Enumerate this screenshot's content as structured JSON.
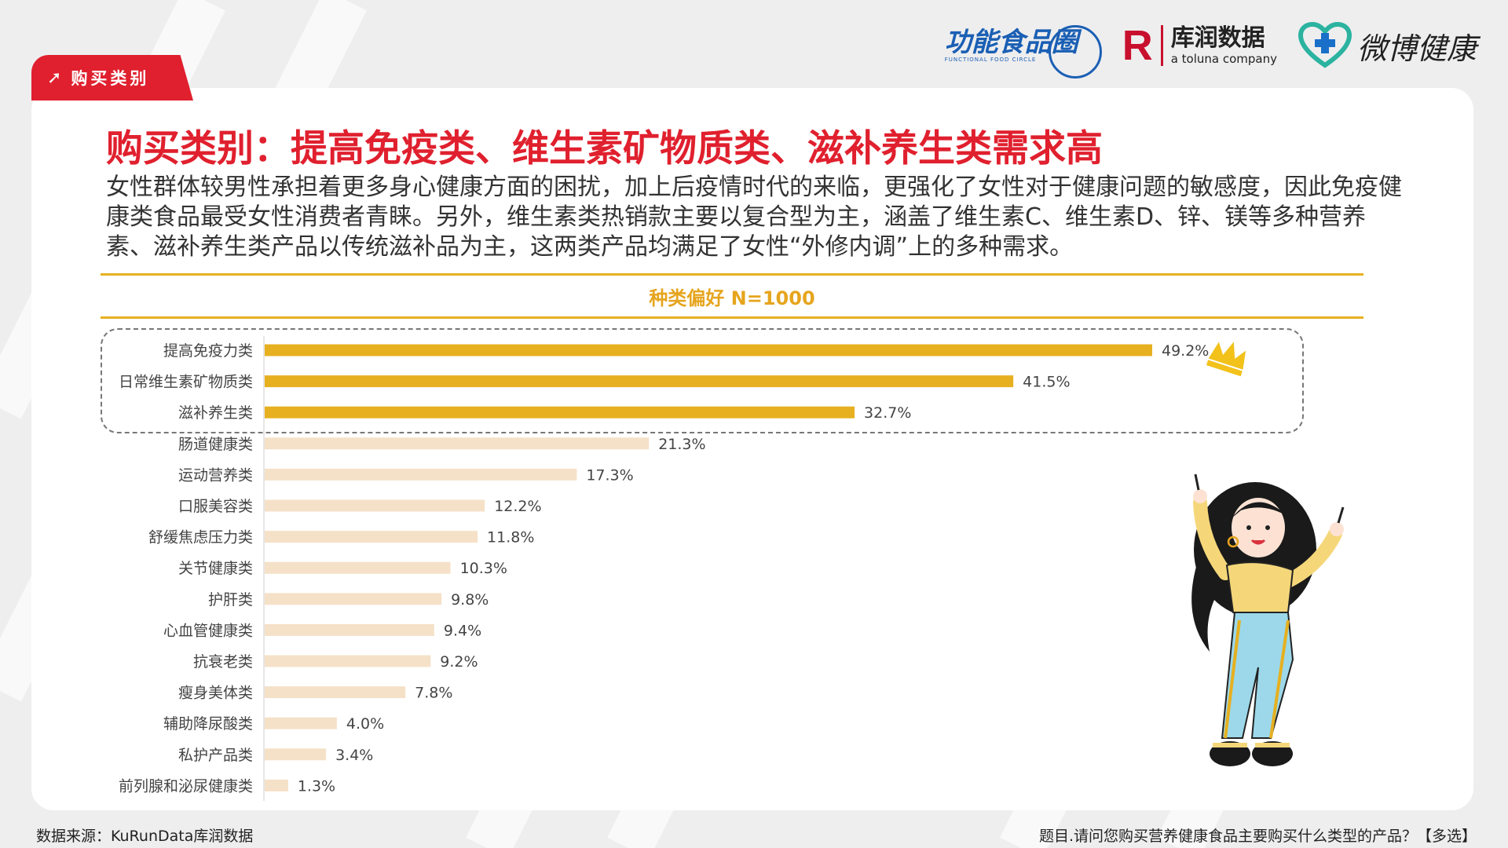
{
  "tag": {
    "label": "购买类别"
  },
  "logos": {
    "ffc_main": "功能食品圈",
    "ffc_sub": "FUNCTIONAL FOOD CIRCLE",
    "kurun_mark": "R",
    "kurun_name": "库润数据",
    "kurun_sub": "a toluna company",
    "weibo_name": "微博健康"
  },
  "title": "购买类别：提高免疫类、维生素矿物质类、滋补养生类需求高",
  "paragraph": "女性群体较男性承担着更多身心健康方面的困扰，加上后疫情时代的来临，更强化了女性对于健康问题的敏感度，因此免疫健康类食品最受女性消费者青睐。另外，维生素类热销款主要以复合型为主，涵盖了维生素C、维生素D、锌、镁等多种营养素、滋补养生类产品以传统滋补品为主，这两类产品均满足了女性“外修内调”上的多种需求。",
  "chart_header": "种类偏好 N=1000",
  "chart_data": {
    "type": "bar",
    "orientation": "horizontal",
    "categories": [
      "提高免疫力类",
      "日常维生素矿物质类",
      "滋补养生类",
      "肠道健康类",
      "运动营养类",
      "口服美容类",
      "舒缓焦虑压力类",
      "关节健康类",
      "护肝类",
      "心血管健康类",
      "抗衰老类",
      "瘦身美体类",
      "辅助降尿酸类",
      "私护产品类",
      "前列腺和泌尿健康类"
    ],
    "values": [
      49.2,
      41.5,
      32.7,
      21.3,
      17.3,
      12.2,
      11.8,
      10.3,
      9.8,
      9.4,
      9.2,
      7.8,
      4.0,
      3.4,
      1.3
    ],
    "labels": [
      "49.2%",
      "41.5%",
      "32.7%",
      "21.3%",
      "17.3%",
      "12.2%",
      "11.8%",
      "10.3%",
      "9.8%",
      "9.4%",
      "9.2%",
      "7.8%",
      "4.0%",
      "3.4%",
      "1.3%"
    ],
    "highlight_count": 3,
    "colors": {
      "highlight": "#e6b020",
      "normal": "#f5e1c8"
    }
  },
  "footer": {
    "source": "数据来源：KuRunData库润数据",
    "question": "题目.请问您购买营养健康食品主要购买什么类型的产品？【多选】"
  }
}
